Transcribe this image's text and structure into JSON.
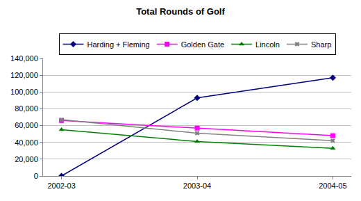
{
  "chart_data": {
    "type": "line",
    "title": "Total Rounds of Golf",
    "categories": [
      "2002-03",
      "2003-04",
      "2004-05"
    ],
    "series": [
      {
        "name": "Harding + Fleming",
        "color": "#000080",
        "marker": "diamond",
        "line_style": "solid",
        "values": [
          0,
          93000,
          117000
        ]
      },
      {
        "name": "Golden Gate",
        "color": "#ff00ff",
        "marker": "square",
        "line_style": "solid",
        "values": [
          66000,
          57000,
          48000
        ]
      },
      {
        "name": "Lincoln",
        "color": "#008000",
        "marker": "triangle-up",
        "line_style": "solid",
        "values": [
          55000,
          41000,
          33000
        ]
      },
      {
        "name": "Sharp",
        "color": "#808080",
        "marker": "x",
        "line_style": "solid",
        "values": [
          67000,
          51000,
          42000
        ]
      }
    ],
    "ylim": [
      0,
      140000
    ],
    "yticks": [
      0,
      {
        "value": 20000,
        "label": "20,000"
      },
      {
        "value": 40000,
        "label": "40,000"
      },
      {
        "value": 60000,
        "label": "60,000"
      },
      {
        "value": 80000,
        "label": "80,000"
      },
      {
        "value": 100000,
        "label": "100,000"
      },
      {
        "value": 120000,
        "label": "120,000"
      },
      {
        "value": 140000,
        "label": "140,000"
      }
    ],
    "grid": true,
    "legend": "top"
  }
}
